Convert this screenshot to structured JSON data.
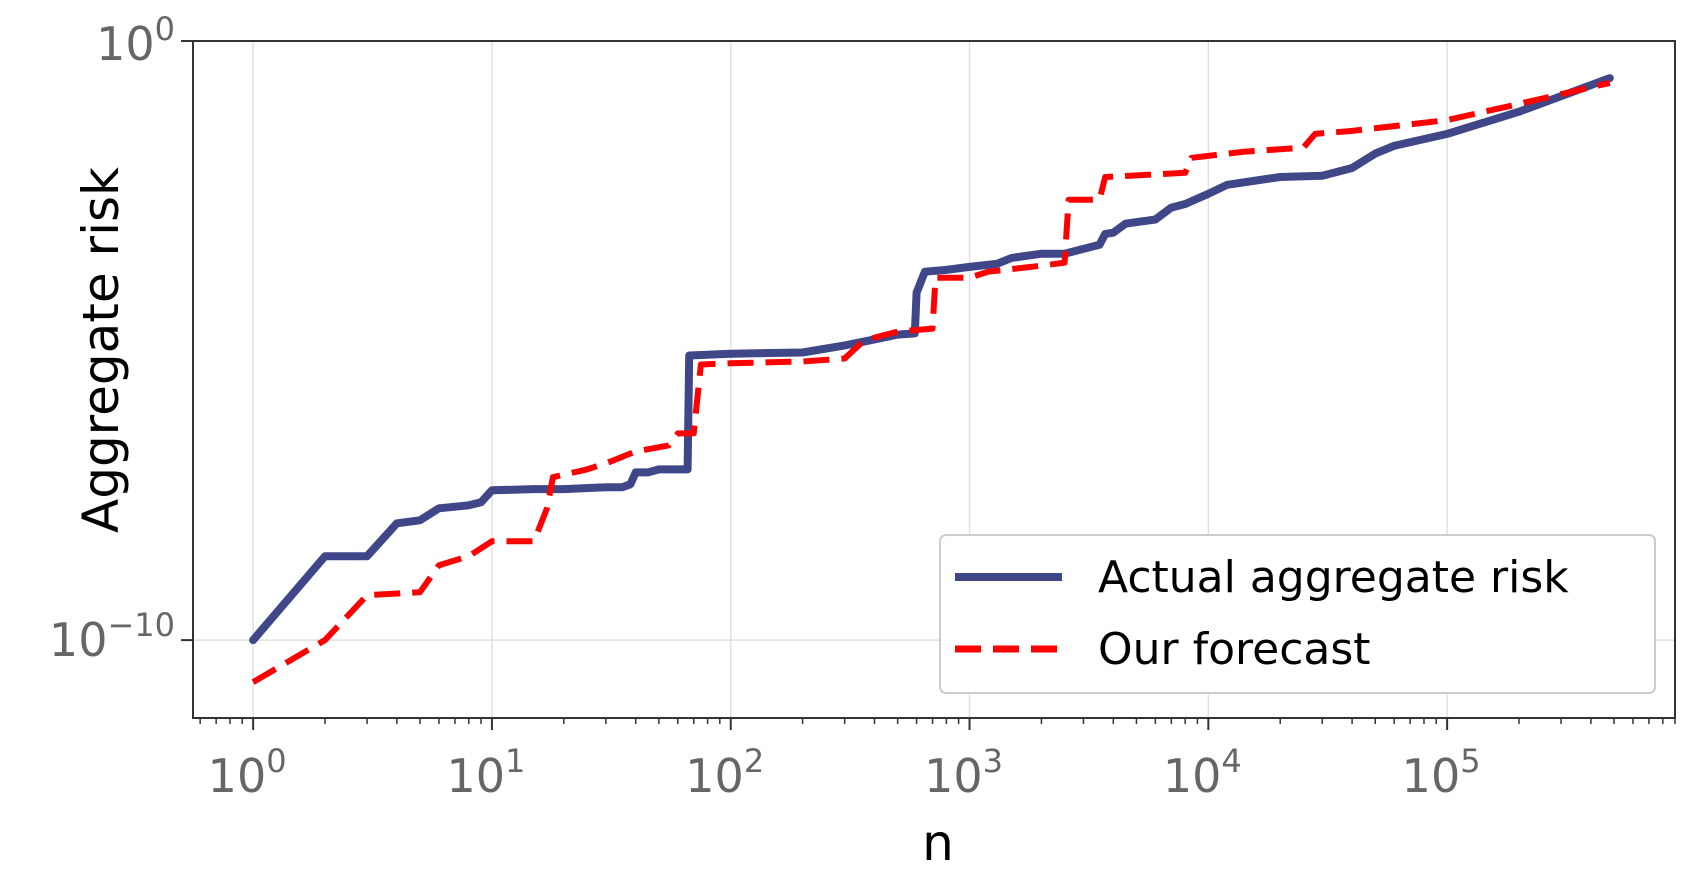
{
  "chart_data": {
    "type": "line",
    "title": "",
    "xlabel": "n",
    "ylabel": "Aggregate risk",
    "xscale": "log",
    "yscale": "log",
    "xlim": [
      0.56,
      900000
    ],
    "ylim_log10": [
      -11.3,
      0
    ],
    "grid": true,
    "legend_position": "lower-right",
    "x_ticks": [
      {
        "base": "10",
        "exp": "0",
        "value": 1
      },
      {
        "base": "10",
        "exp": "1",
        "value": 10
      },
      {
        "base": "10",
        "exp": "2",
        "value": 100
      },
      {
        "base": "10",
        "exp": "3",
        "value": 1000
      },
      {
        "base": "10",
        "exp": "4",
        "value": 10000
      },
      {
        "base": "10",
        "exp": "5",
        "value": 100000
      }
    ],
    "y_ticks": [
      {
        "base": "10",
        "exp": "0",
        "value": 1
      },
      {
        "base": "10",
        "exp": "−10",
        "value": 1e-10
      }
    ],
    "series": [
      {
        "name": "Actual aggregate risk",
        "color": "#404788",
        "style": "solid",
        "points": [
          [
            1,
            -10.0
          ],
          [
            2,
            -8.6
          ],
          [
            3,
            -8.6
          ],
          [
            4,
            -8.05
          ],
          [
            5,
            -8.0
          ],
          [
            6,
            -7.8
          ],
          [
            8,
            -7.75
          ],
          [
            9,
            -7.7
          ],
          [
            10,
            -7.5
          ],
          [
            15,
            -7.48
          ],
          [
            20,
            -7.48
          ],
          [
            30,
            -7.45
          ],
          [
            35,
            -7.45
          ],
          [
            38,
            -7.4
          ],
          [
            40,
            -7.2
          ],
          [
            45,
            -7.2
          ],
          [
            50,
            -7.15
          ],
          [
            66,
            -7.15
          ],
          [
            67,
            -5.25
          ],
          [
            100,
            -5.22
          ],
          [
            200,
            -5.2
          ],
          [
            300,
            -5.08
          ],
          [
            400,
            -4.98
          ],
          [
            500,
            -4.9
          ],
          [
            590,
            -4.88
          ],
          [
            600,
            -4.2
          ],
          [
            650,
            -3.85
          ],
          [
            800,
            -3.82
          ],
          [
            1000,
            -3.77
          ],
          [
            1300,
            -3.72
          ],
          [
            1500,
            -3.62
          ],
          [
            2000,
            -3.55
          ],
          [
            2500,
            -3.55
          ],
          [
            3500,
            -3.4
          ],
          [
            3700,
            -3.22
          ],
          [
            4000,
            -3.2
          ],
          [
            4500,
            -3.05
          ],
          [
            6000,
            -2.98
          ],
          [
            7000,
            -2.78
          ],
          [
            8000,
            -2.72
          ],
          [
            10000,
            -2.55
          ],
          [
            12000,
            -2.4
          ],
          [
            20000,
            -2.27
          ],
          [
            30000,
            -2.25
          ],
          [
            40000,
            -2.12
          ],
          [
            50000,
            -1.88
          ],
          [
            60000,
            -1.75
          ],
          [
            100000,
            -1.55
          ],
          [
            200000,
            -1.18
          ],
          [
            480000,
            -0.62
          ]
        ]
      },
      {
        "name": "Our forecast",
        "color": "#ff0000",
        "style": "dashed",
        "points": [
          [
            1,
            -10.7
          ],
          [
            2,
            -10.0
          ],
          [
            3,
            -9.25
          ],
          [
            5,
            -9.2
          ],
          [
            6,
            -8.75
          ],
          [
            8,
            -8.6
          ],
          [
            10,
            -8.35
          ],
          [
            15,
            -8.35
          ],
          [
            17,
            -7.8
          ],
          [
            18,
            -7.28
          ],
          [
            25,
            -7.15
          ],
          [
            30,
            -7.05
          ],
          [
            40,
            -6.85
          ],
          [
            55,
            -6.75
          ],
          [
            60,
            -6.55
          ],
          [
            70,
            -6.55
          ],
          [
            75,
            -5.4
          ],
          [
            100,
            -5.38
          ],
          [
            200,
            -5.35
          ],
          [
            300,
            -5.3
          ],
          [
            350,
            -5.05
          ],
          [
            400,
            -4.95
          ],
          [
            500,
            -4.85
          ],
          [
            700,
            -4.8
          ],
          [
            720,
            -3.95
          ],
          [
            800,
            -3.95
          ],
          [
            1000,
            -3.95
          ],
          [
            1200,
            -3.85
          ],
          [
            2000,
            -3.75
          ],
          [
            2500,
            -3.7
          ],
          [
            2600,
            -2.65
          ],
          [
            3500,
            -2.65
          ],
          [
            3700,
            -2.27
          ],
          [
            8000,
            -2.2
          ],
          [
            8500,
            -1.95
          ],
          [
            14000,
            -1.85
          ],
          [
            25000,
            -1.78
          ],
          [
            28000,
            -1.55
          ],
          [
            40000,
            -1.5
          ],
          [
            100000,
            -1.32
          ],
          [
            200000,
            -1.05
          ],
          [
            480000,
            -0.7
          ]
        ]
      }
    ]
  },
  "colors": {
    "axis": "#333333",
    "grid": "#e0e0e0",
    "legend_border": "#cccccc"
  }
}
